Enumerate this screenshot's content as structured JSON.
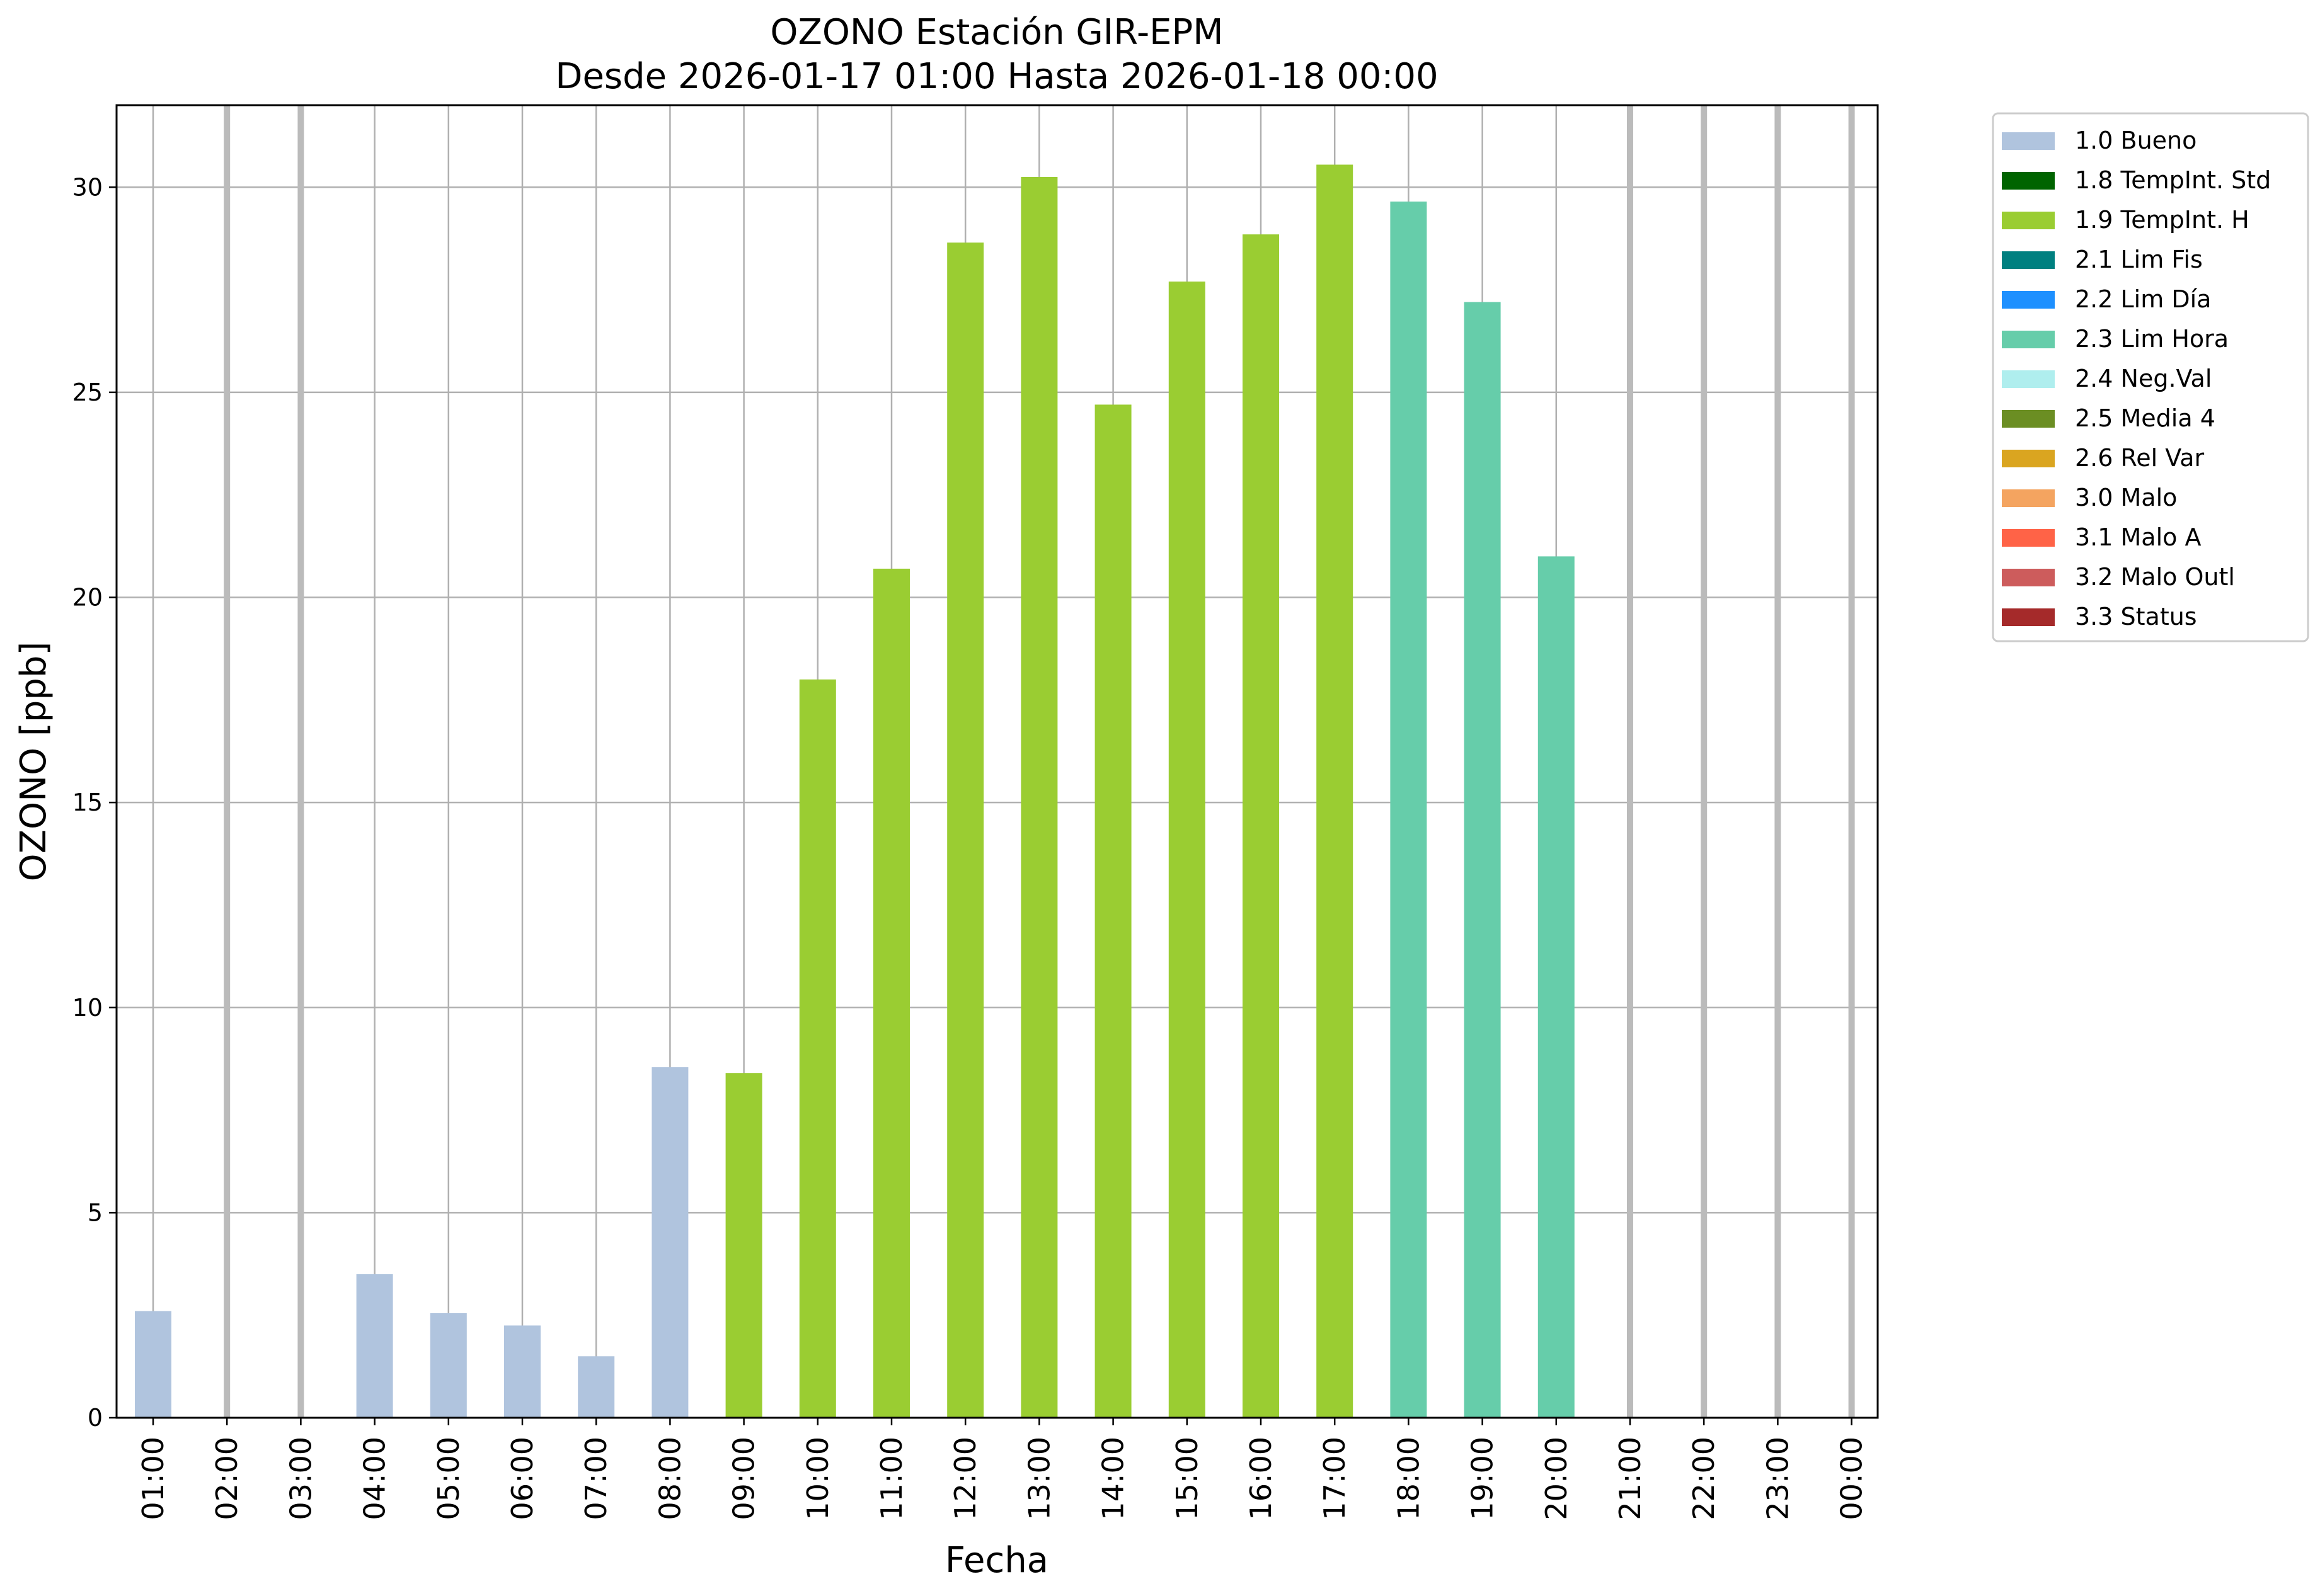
{
  "chart_data": {
    "type": "bar",
    "title": "OZONO Estación GIR-EPM",
    "subtitle": "Desde 2026-01-17 01:00 Hasta 2026-01-18 00:00",
    "xlabel": "Fecha",
    "ylabel": "OZONO [ppb]",
    "ylim": [
      0,
      32
    ],
    "yticks": [
      0,
      5,
      10,
      15,
      20,
      25,
      30
    ],
    "grid": true,
    "legend_position": "outside-right-top",
    "categories": [
      "01:00",
      "02:00",
      "03:00",
      "04:00",
      "05:00",
      "06:00",
      "07:00",
      "08:00",
      "09:00",
      "10:00",
      "11:00",
      "12:00",
      "13:00",
      "14:00",
      "15:00",
      "16:00",
      "17:00",
      "18:00",
      "19:00",
      "20:00",
      "21:00",
      "22:00",
      "23:00",
      "00:00"
    ],
    "values": [
      2.6,
      null,
      null,
      3.5,
      2.55,
      2.25,
      1.5,
      8.55,
      8.4,
      18.0,
      20.7,
      28.65,
      30.25,
      24.7,
      27.7,
      28.85,
      30.55,
      29.65,
      27.2,
      21.0,
      null,
      null,
      null,
      null
    ],
    "flags": [
      "1.0 Bueno",
      null,
      null,
      "1.0 Bueno",
      "1.0 Bueno",
      "1.0 Bueno",
      "1.0 Bueno",
      "1.0 Bueno",
      "1.9 TempInt. H",
      "1.9 TempInt. H",
      "1.9 TempInt. H",
      "1.9 TempInt. H",
      "1.9 TempInt. H",
      "1.9 TempInt. H",
      "1.9 TempInt. H",
      "1.9 TempInt. H",
      "1.9 TempInt. H",
      "2.3 Lim Hora",
      "2.3 Lim Hora",
      "2.3 Lim Hora",
      null,
      null,
      null,
      null
    ],
    "missing_marker_color": "#bbbbbb",
    "legend": [
      {
        "label": "1.0 Bueno",
        "color": "#b0c4de"
      },
      {
        "label": "1.8 TempInt. Std",
        "color": "#006400"
      },
      {
        "label": "1.9 TempInt. H",
        "color": "#9acd32"
      },
      {
        "label": "2.1 Lim Fis",
        "color": "#008080"
      },
      {
        "label": "2.2 Lim Día",
        "color": "#1e90ff"
      },
      {
        "label": "2.3 Lim Hora",
        "color": "#66cdaa"
      },
      {
        "label": "2.4 Neg.Val",
        "color": "#afeeee"
      },
      {
        "label": "2.5 Media 4",
        "color": "#6b8e23"
      },
      {
        "label": "2.6 Rel Var",
        "color": "#daa520"
      },
      {
        "label": "3.0 Malo",
        "color": "#f4a460"
      },
      {
        "label": "3.1 Malo A",
        "color": "#ff6347"
      },
      {
        "label": "3.2 Malo Outl",
        "color": "#cd5c5c"
      },
      {
        "label": "3.3 Status",
        "color": "#a52a2a"
      }
    ]
  }
}
